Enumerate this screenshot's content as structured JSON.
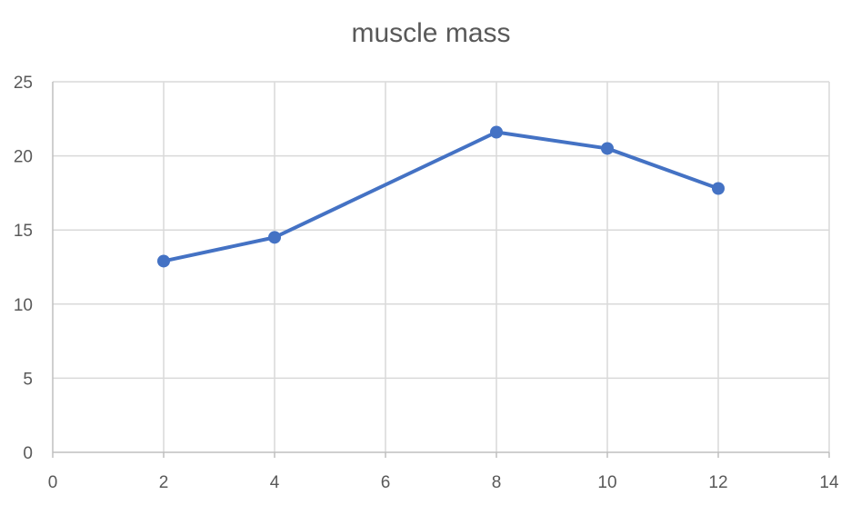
{
  "chart_data": {
    "type": "scatter",
    "title": "muscle mass",
    "xlabel": "",
    "ylabel": "",
    "xlim": [
      0,
      14
    ],
    "ylim": [
      0,
      25
    ],
    "x_ticks": [
      0,
      2,
      4,
      6,
      8,
      10,
      12,
      14
    ],
    "y_ticks": [
      0,
      5,
      10,
      15,
      20,
      25
    ],
    "grid": true,
    "legend": "none",
    "series": [
      {
        "color": "#4472c4",
        "marker": "circle",
        "line": "straight",
        "x": [
          2,
          4,
          8,
          10,
          12
        ],
        "y": [
          12.9,
          14.5,
          21.6,
          20.5,
          17.8
        ]
      }
    ]
  }
}
